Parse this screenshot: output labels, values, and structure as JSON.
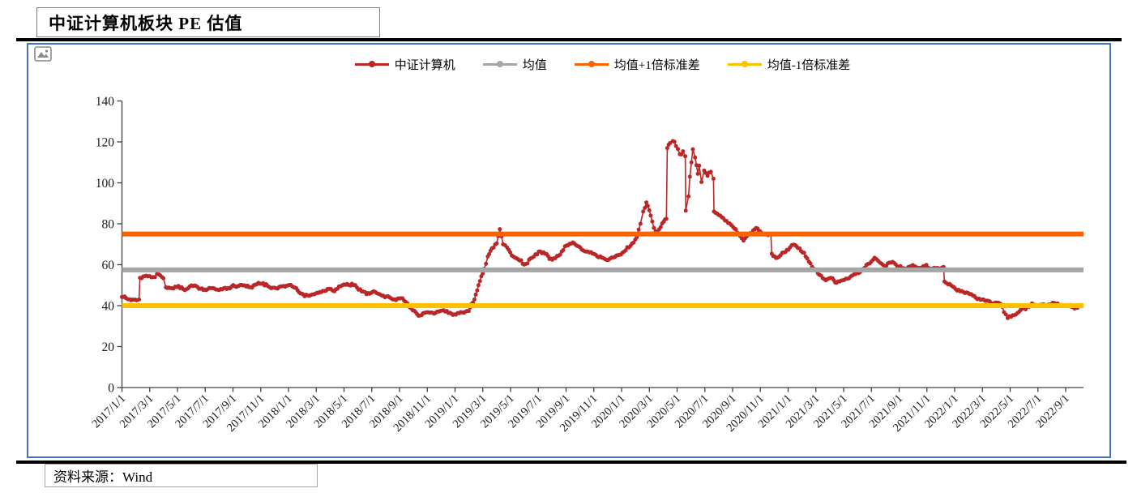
{
  "header": {
    "title": "中证计算机板块 PE 估值"
  },
  "footer": {
    "source_label": "资料来源：Wind"
  },
  "icons": {
    "placeholder": "image-icon"
  },
  "frame_color": "#4472C4",
  "chart_data": {
    "type": "line",
    "title": "中证计算机板块 PE 估值",
    "grid": false,
    "legend_position": "top-center",
    "ylim": [
      0,
      140
    ],
    "y_ticks": [
      0,
      20,
      40,
      60,
      80,
      100,
      120,
      140
    ],
    "x_tick_labels": [
      "2017/1/1",
      "2017/3/1",
      "2017/5/1",
      "2017/7/1",
      "2017/9/1",
      "2017/11/1",
      "2018/1/1",
      "2018/3/1",
      "2018/5/1",
      "2018/7/1",
      "2018/9/1",
      "2018/11/1",
      "2019/1/1",
      "2019/3/1",
      "2019/5/1",
      "2019/7/1",
      "2019/9/1",
      "2019/11/1",
      "2020/1/1",
      "2020/3/1",
      "2020/5/1",
      "2020/7/1",
      "2020/9/1",
      "2020/11/1",
      "2021/1/1",
      "2021/3/1",
      "2021/5/1",
      "2021/7/1",
      "2021/9/1",
      "2021/11/1",
      "2022/1/1",
      "2022/3/1",
      "2022/5/1",
      "2022/7/1",
      "2022/9/1"
    ],
    "axis_color": "#404040",
    "label_color": "#1a1a1a",
    "series": [
      {
        "name": "中证计算机",
        "type": "line+markers",
        "color": "#BB2626",
        "anchors": [
          [
            "2017-01-01",
            44.2
          ],
          [
            "2017-01-10",
            43.6
          ],
          [
            "2017-01-18",
            43.1
          ],
          [
            "2017-02-03",
            42.6
          ],
          [
            "2017-02-08",
            43.0
          ],
          [
            "2017-02-10",
            53.6
          ],
          [
            "2017-02-17",
            54.2
          ],
          [
            "2017-02-24",
            54.6
          ],
          [
            "2017-03-08",
            53.9
          ],
          [
            "2017-03-17",
            55.6
          ],
          [
            "2017-03-24",
            54.8
          ],
          [
            "2017-03-31",
            53.4
          ],
          [
            "2017-04-06",
            49.0
          ],
          [
            "2017-04-19",
            48.5
          ],
          [
            "2017-05-03",
            49.6
          ],
          [
            "2017-05-17",
            47.6
          ],
          [
            "2017-06-01",
            49.9
          ],
          [
            "2017-06-15",
            49.0
          ],
          [
            "2017-07-03",
            47.6
          ],
          [
            "2017-07-17",
            48.6
          ],
          [
            "2017-08-01",
            47.6
          ],
          [
            "2017-08-21",
            48.6
          ],
          [
            "2017-09-05",
            49.5
          ],
          [
            "2017-09-20",
            50.1
          ],
          [
            "2017-10-09",
            49.0
          ],
          [
            "2017-10-23",
            50.5
          ],
          [
            "2017-11-06",
            51.0
          ],
          [
            "2017-11-20",
            49.1
          ],
          [
            "2017-12-04",
            48.5
          ],
          [
            "2017-12-18",
            49.5
          ],
          [
            "2018-01-03",
            50.1
          ],
          [
            "2018-01-18",
            48.5
          ],
          [
            "2018-02-06",
            44.6
          ],
          [
            "2018-02-26",
            45.5
          ],
          [
            "2018-03-12",
            46.6
          ],
          [
            "2018-03-26",
            48.1
          ],
          [
            "2018-04-10",
            47.0
          ],
          [
            "2018-04-24",
            49.5
          ],
          [
            "2018-05-08",
            50.6
          ],
          [
            "2018-05-22",
            50.0
          ],
          [
            "2018-06-06",
            48.0
          ],
          [
            "2018-06-20",
            45.6
          ],
          [
            "2018-07-05",
            47.0
          ],
          [
            "2018-07-19",
            45.5
          ],
          [
            "2018-08-03",
            44.5
          ],
          [
            "2018-08-20",
            43.1
          ],
          [
            "2018-09-04",
            43.6
          ],
          [
            "2018-09-18",
            41.2
          ],
          [
            "2018-09-27",
            38.6
          ],
          [
            "2018-10-09",
            35.9
          ],
          [
            "2018-10-19",
            35.4
          ],
          [
            "2018-11-02",
            36.8
          ],
          [
            "2018-11-16",
            36.1
          ],
          [
            "2018-12-03",
            37.6
          ],
          [
            "2018-12-17",
            36.4
          ],
          [
            "2019-01-03",
            35.6
          ],
          [
            "2019-01-17",
            36.7
          ],
          [
            "2019-01-31",
            37.4
          ],
          [
            "2019-02-13",
            43.0
          ],
          [
            "2019-02-22",
            50.0
          ],
          [
            "2019-03-04",
            58.0
          ],
          [
            "2019-03-12",
            64.0
          ],
          [
            "2019-03-21",
            68.0
          ],
          [
            "2019-04-01",
            70.4
          ],
          [
            "2019-04-08",
            77.4
          ],
          [
            "2019-04-15",
            70.0
          ],
          [
            "2019-04-24",
            68.4
          ],
          [
            "2019-05-07",
            64.0
          ],
          [
            "2019-05-21",
            62.0
          ],
          [
            "2019-06-04",
            60.4
          ],
          [
            "2019-06-18",
            63.4
          ],
          [
            "2019-07-02",
            66.4
          ],
          [
            "2019-07-16",
            65.4
          ],
          [
            "2019-08-01",
            62.4
          ],
          [
            "2019-08-15",
            64.4
          ],
          [
            "2019-09-02",
            69.4
          ],
          [
            "2019-09-16",
            70.9
          ],
          [
            "2019-10-08",
            67.0
          ],
          [
            "2019-10-22",
            66.0
          ],
          [
            "2019-11-05",
            64.9
          ],
          [
            "2019-11-19",
            63.4
          ],
          [
            "2019-12-03",
            62.4
          ],
          [
            "2019-12-17",
            63.9
          ],
          [
            "2020-01-03",
            65.9
          ],
          [
            "2020-01-17",
            68.4
          ],
          [
            "2020-02-04",
            73.4
          ],
          [
            "2020-02-12",
            80.0
          ],
          [
            "2020-02-18",
            86.0
          ],
          [
            "2020-02-25",
            90.4
          ],
          [
            "2020-03-04",
            84.0
          ],
          [
            "2020-03-11",
            78.0
          ],
          [
            "2020-03-19",
            76.0
          ],
          [
            "2020-03-26",
            78.4
          ],
          [
            "2020-04-02",
            81.0
          ],
          [
            "2020-04-08",
            82.4
          ],
          [
            "2020-04-10",
            117.0
          ],
          [
            "2020-04-16",
            119.4
          ],
          [
            "2020-04-22",
            120.4
          ],
          [
            "2020-04-29",
            118.0
          ],
          [
            "2020-05-07",
            114.0
          ],
          [
            "2020-05-14",
            115.4
          ],
          [
            "2020-05-19",
            113.0
          ],
          [
            "2020-05-20",
            86.4
          ],
          [
            "2020-05-26",
            93.4
          ],
          [
            "2020-05-29",
            103.0
          ],
          [
            "2020-06-02",
            110.0
          ],
          [
            "2020-06-05",
            116.4
          ],
          [
            "2020-06-10",
            112.4
          ],
          [
            "2020-06-16",
            104.4
          ],
          [
            "2020-06-19",
            108.4
          ],
          [
            "2020-06-24",
            100.4
          ],
          [
            "2020-06-30",
            106.0
          ],
          [
            "2020-07-07",
            103.4
          ],
          [
            "2020-07-14",
            105.4
          ],
          [
            "2020-07-20",
            102.0
          ],
          [
            "2020-07-21",
            86.0
          ],
          [
            "2020-08-04",
            84.0
          ],
          [
            "2020-08-18",
            81.4
          ],
          [
            "2020-09-02",
            78.4
          ],
          [
            "2020-09-14",
            75.0
          ],
          [
            "2020-09-25",
            71.8
          ],
          [
            "2020-10-09",
            75.4
          ],
          [
            "2020-10-22",
            77.9
          ],
          [
            "2020-11-04",
            75.4
          ],
          [
            "2020-11-18",
            74.4
          ],
          [
            "2020-11-24",
            74.9
          ],
          [
            "2020-11-26",
            65.4
          ],
          [
            "2020-12-08",
            63.4
          ],
          [
            "2020-12-22",
            66.0
          ],
          [
            "2021-01-05",
            68.4
          ],
          [
            "2021-01-13",
            69.8
          ],
          [
            "2021-01-26",
            68.0
          ],
          [
            "2021-02-09",
            64.0
          ],
          [
            "2021-02-23",
            59.0
          ],
          [
            "2021-03-09",
            55.0
          ],
          [
            "2021-03-23",
            52.4
          ],
          [
            "2021-04-07",
            53.4
          ],
          [
            "2021-04-16",
            51.2
          ],
          [
            "2021-04-29",
            52.4
          ],
          [
            "2021-05-13",
            53.4
          ],
          [
            "2021-05-27",
            55.4
          ],
          [
            "2021-06-10",
            57.4
          ],
          [
            "2021-06-24",
            60.4
          ],
          [
            "2021-07-08",
            63.4
          ],
          [
            "2021-07-20",
            61.0
          ],
          [
            "2021-08-03",
            59.4
          ],
          [
            "2021-08-17",
            61.4
          ],
          [
            "2021-08-31",
            59.0
          ],
          [
            "2021-09-14",
            58.0
          ],
          [
            "2021-09-28",
            59.4
          ],
          [
            "2021-10-13",
            58.4
          ],
          [
            "2021-10-27",
            59.4
          ],
          [
            "2021-11-10",
            58.0
          ],
          [
            "2021-11-24",
            58.4
          ],
          [
            "2021-12-07",
            58.9
          ],
          [
            "2021-12-09",
            51.8
          ],
          [
            "2021-12-17",
            50.4
          ],
          [
            "2021-12-30",
            49.0
          ],
          [
            "2022-01-13",
            47.0
          ],
          [
            "2022-01-27",
            46.4
          ],
          [
            "2022-02-10",
            45.0
          ],
          [
            "2022-02-24",
            43.4
          ],
          [
            "2022-03-10",
            42.4
          ],
          [
            "2022-03-24",
            41.0
          ],
          [
            "2022-04-06",
            41.4
          ],
          [
            "2022-04-14",
            39.4
          ],
          [
            "2022-04-26",
            33.9
          ],
          [
            "2022-05-10",
            35.4
          ],
          [
            "2022-05-24",
            37.9
          ],
          [
            "2022-06-08",
            39.4
          ],
          [
            "2022-06-22",
            40.4
          ],
          [
            "2022-07-06",
            40.4
          ],
          [
            "2022-07-20",
            40.0
          ],
          [
            "2022-08-03",
            41.4
          ],
          [
            "2022-08-17",
            40.4
          ],
          [
            "2022-08-31",
            40.0
          ],
          [
            "2022-09-14",
            39.4
          ],
          [
            "2022-09-27",
            39.0
          ]
        ]
      },
      {
        "name": "均值",
        "type": "hline",
        "color": "#A6A6A6",
        "value": 57.5
      },
      {
        "name": "均值+1倍标准差",
        "type": "hline",
        "color": "#FA6400",
        "value": 75.0
      },
      {
        "name": "均值-1倍标准差",
        "type": "hline",
        "color": "#FFC000",
        "value": 40.0
      }
    ]
  }
}
